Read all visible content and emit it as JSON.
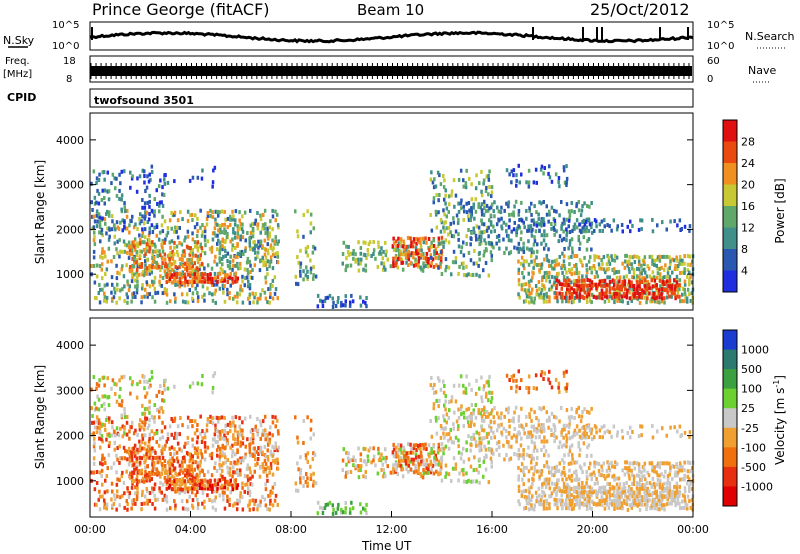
{
  "header": {
    "station": "Prince George (fitACF)",
    "beam": "Beam 10",
    "date": "25/Oct/2012"
  },
  "noise_panel": {
    "left_label": "N.Sky",
    "right_label": "N.Search",
    "left_ticks": [
      "10^5",
      "10^0"
    ],
    "right_ticks": [
      "10^5",
      "10^0"
    ]
  },
  "freq_panel": {
    "left_label_1": "Freq.",
    "left_label_2": "[MHz]",
    "right_label": "Nave",
    "left_ticks": [
      "18",
      "8"
    ],
    "right_ticks": [
      "60",
      "0"
    ]
  },
  "cpid_panel": {
    "label": "CPID",
    "text": "twofsound 3501"
  },
  "chart_data": [
    {
      "type": "heatmap",
      "title": "",
      "ylabel": "Slant Range [km]",
      "xlabel": "",
      "ylim": [
        200,
        4600
      ],
      "y_ticks": [
        "1000",
        "2000",
        "3000",
        "4000"
      ],
      "colorbar_label": "Power [dB]",
      "colorbar_ticks": [
        "4",
        "8",
        "12",
        "16",
        "20",
        "24",
        "28"
      ],
      "colorbar_colors": [
        "#1f2fe0",
        "#2a58b0",
        "#3f8f8a",
        "#5fa86a",
        "#c8c832",
        "#f09020",
        "#e84a10",
        "#e01010"
      ]
    },
    {
      "type": "heatmap",
      "title": "",
      "ylabel": "Slant Range [km]",
      "xlabel": "Time UT",
      "ylim": [
        200,
        4600
      ],
      "y_ticks": [
        "1000",
        "2000",
        "3000",
        "4000"
      ],
      "x_ticks": [
        "00:00",
        "04:00",
        "08:00",
        "12:00",
        "16:00",
        "20:00",
        "00:00"
      ],
      "colorbar_label": "Velocity [m s^-1]",
      "colorbar_ticks": [
        "1000",
        "500",
        "100",
        "25",
        "-25",
        "-100",
        "-500",
        "-1000"
      ],
      "colorbar_colors": [
        "#1a3cd0",
        "#2a7a70",
        "#3aa040",
        "#6cd030",
        "#c8c8c8",
        "#f0a030",
        "#f07010",
        "#e83010",
        "#e00000"
      ]
    }
  ]
}
